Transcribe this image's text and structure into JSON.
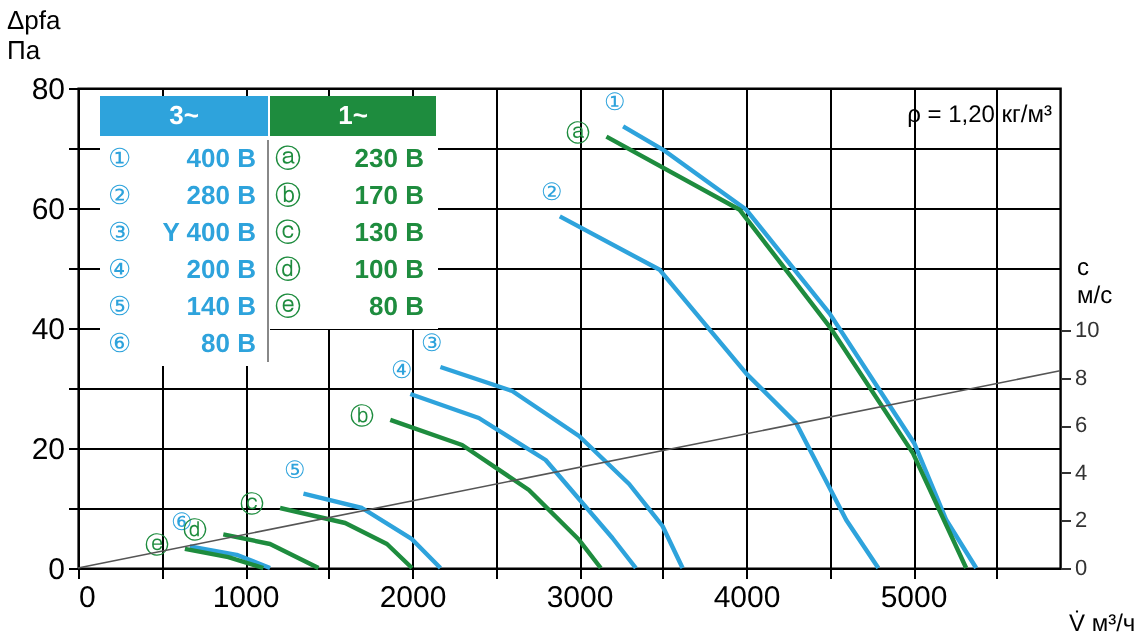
{
  "chart_data": {
    "type": "line",
    "xlabel": "V̇ м³/ч",
    "ylabel": "Δpfa Па",
    "y2label": "c м/с",
    "xlim": [
      0,
      5880
    ],
    "ylim": [
      0,
      80
    ],
    "y2lim": [
      0,
      20.2
    ],
    "xticks": [
      0,
      {
        "value": 500,
        "label": null
      },
      1000,
      {
        "value": 1500,
        "label": null
      },
      2000,
      {
        "value": 2500,
        "label": null
      },
      3000,
      {
        "value": 3500,
        "label": null
      },
      4000,
      {
        "value": 4500,
        "label": null
      },
      5000,
      {
        "value": 5500,
        "label": null
      }
    ],
    "yticks": [
      0,
      {
        "value": 10,
        "label": null
      },
      20,
      {
        "value": 30,
        "label": null
      },
      40,
      {
        "value": 50,
        "label": null
      },
      60,
      {
        "value": 70,
        "label": null
      },
      80
    ],
    "y2ticks": [
      0,
      2,
      4,
      6,
      8,
      10
    ],
    "grid": true,
    "line_style": "solid",
    "marker": "none",
    "series": [
      {
        "name": "① 400 В",
        "color": "#2ea3dc",
        "x": [
          3264,
          3504,
          4002,
          4501,
          5007,
          5199,
          5378
        ],
        "values": [
          73.6,
          69.7,
          59.7,
          42.4,
          20.8,
          8,
          0
        ]
      },
      {
        "name": "② 280 В",
        "color": "#2ea3dc",
        "x": [
          2885,
          3483,
          4002,
          4301,
          4600,
          4792
        ],
        "values": [
          58.6,
          49.7,
          32.4,
          24.1,
          8,
          0
        ]
      },
      {
        "name": "③ Y 400 В",
        "color": "#2ea3dc",
        "x": [
          2170,
          2600,
          3000,
          3300,
          3500,
          3620
        ],
        "values": [
          33.5,
          29.5,
          22,
          14,
          7,
          0
        ]
      },
      {
        "name": "④ 200 В",
        "color": "#2ea3dc",
        "x": [
          1990,
          2400,
          2800,
          3000,
          3200,
          3340
        ],
        "values": [
          29,
          25,
          18,
          11.5,
          5,
          0
        ]
      },
      {
        "name": "⑤ 140 В",
        "color": "#2ea3dc",
        "x": [
          1350,
          1700,
          2000,
          2170
        ],
        "values": [
          12.4,
          10,
          4.8,
          0
        ]
      },
      {
        "name": "⑥ 80 В",
        "color": "#2ea3dc",
        "x": [
          670,
          950,
          1150
        ],
        "values": [
          3.6,
          2.2,
          0
        ]
      },
      {
        "name": "ⓐ 230 В",
        "color": "#1e8c3e",
        "x": [
          3164,
          3962,
          4501,
          5000,
          5318
        ],
        "values": [
          71.9,
          59.7,
          40.2,
          19.1,
          0
        ]
      },
      {
        "name": "ⓑ 170 В",
        "color": "#1e8c3e",
        "x": [
          1870,
          2300,
          2700,
          3000,
          3130
        ],
        "values": [
          24.7,
          20.5,
          13,
          4.7,
          0
        ]
      },
      {
        "name": "ⓒ 130 В",
        "color": "#1e8c3e",
        "x": [
          1210,
          1600,
          1850,
          2000
        ],
        "values": [
          10,
          7.5,
          4,
          0
        ]
      },
      {
        "name": "ⓓ 100 В",
        "color": "#1e8c3e",
        "x": [
          870,
          1150,
          1440
        ],
        "values": [
          5.6,
          4,
          0
        ]
      },
      {
        "name": "ⓔ 80 В",
        "color": "#1e8c3e",
        "x": [
          640,
          900,
          1110
        ],
        "values": [
          3.2,
          1.8,
          0
        ]
      },
      {
        "color": "#555555",
        "axis": "y2",
        "x": [
          0,
          5880
        ],
        "values": [
          0,
          8.3
        ]
      }
    ],
    "annotations": [
      "3~",
      "1~",
      "ρ = 1,20 кг/м³",
      {
        "text": "①",
        "x": 3264,
        "y": 73.6
      },
      {
        "text": "②",
        "x": 2885,
        "y": 58.6
      },
      {
        "text": "③",
        "x": 2170,
        "y": 33.5
      },
      {
        "text": "④",
        "x": 1990,
        "y": 29
      },
      {
        "text": "⑤",
        "x": 1350,
        "y": 12.4
      },
      {
        "text": "⑥",
        "x": 670,
        "y": 3.6
      },
      {
        "text": "ⓐ",
        "x": 3164,
        "y": 71.9
      },
      {
        "text": "ⓑ",
        "x": 1870,
        "y": 24.7
      },
      {
        "text": "ⓒ",
        "x": 1210,
        "y": 10
      },
      {
        "text": "ⓓ",
        "x": 870,
        "y": 5.6
      },
      {
        "text": "ⓔ",
        "x": 640,
        "y": 3.2
      }
    ]
  }
}
